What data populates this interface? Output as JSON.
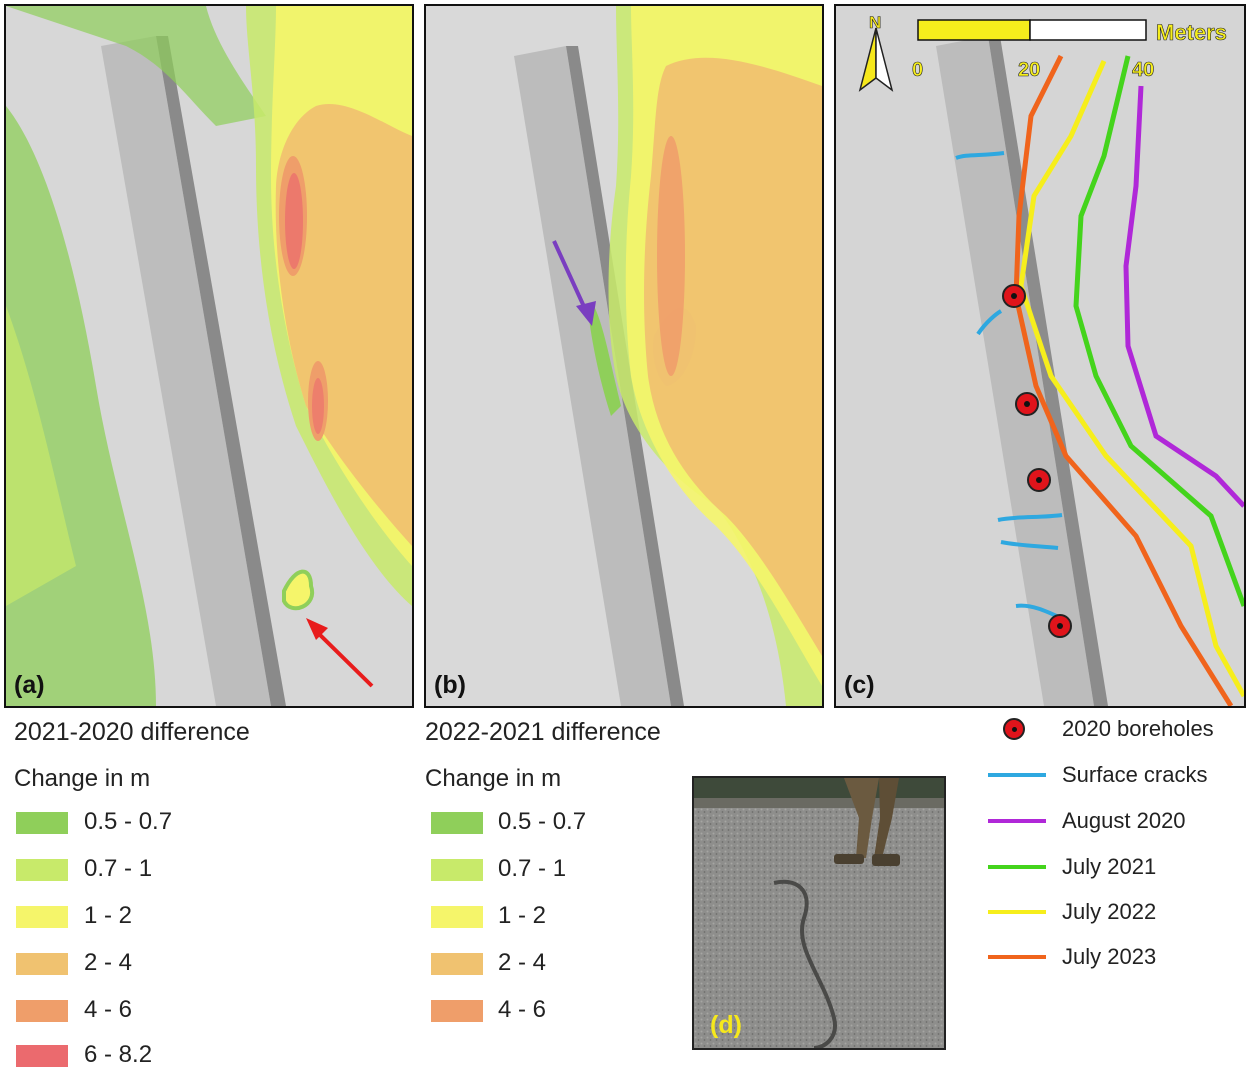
{
  "panels": {
    "a": {
      "label": "(a)"
    },
    "b": {
      "label": "(b)"
    },
    "c": {
      "label": "(c)"
    },
    "d": {
      "label": "(d)"
    }
  },
  "scalebar": {
    "north": "N",
    "unit": "Meters",
    "ticks": [
      "0",
      "20",
      "40"
    ]
  },
  "legend_a": {
    "title": "2021-2020 difference",
    "subtitle": "Change in m",
    "classes": [
      {
        "label": "0.5 - 0.7",
        "color": "#8fcf5a"
      },
      {
        "label": "0.7 - 1",
        "color": "#c8ea6a"
      },
      {
        "label": "1 - 2",
        "color": "#f5f56a"
      },
      {
        "label": "2 - 4",
        "color": "#f0c270"
      },
      {
        "label": "4 - 6",
        "color": "#ef9e6a"
      },
      {
        "label": "6 - 8.2",
        "color": "#eb6a6e"
      }
    ]
  },
  "legend_b": {
    "title": "2022-2021 difference",
    "subtitle": "Change in m",
    "classes": [
      {
        "label": "0.5 - 0.7",
        "color": "#8fcf5a"
      },
      {
        "label": "0.7 - 1",
        "color": "#c8ea6a"
      },
      {
        "label": "1 - 2",
        "color": "#f5f56a"
      },
      {
        "label": "2 - 4",
        "color": "#f0c270"
      },
      {
        "label": "4 - 6",
        "color": "#ef9e6a"
      }
    ]
  },
  "legend_c": {
    "boreholes": {
      "label": "2020 boreholes",
      "color": "#e0141b"
    },
    "cracks": {
      "label": "Surface cracks",
      "color": "#2ea8e0"
    },
    "lines": [
      {
        "label": "August 2020",
        "color": "#b028d8"
      },
      {
        "label": "July 2021",
        "color": "#44d41c"
      },
      {
        "label": "July 2022",
        "color": "#f6ee1c"
      },
      {
        "label": "July 2023",
        "color": "#f0641c"
      }
    ]
  },
  "arrows": {
    "a_color": "#e81c1c",
    "b_color": "#7a3ec0"
  }
}
